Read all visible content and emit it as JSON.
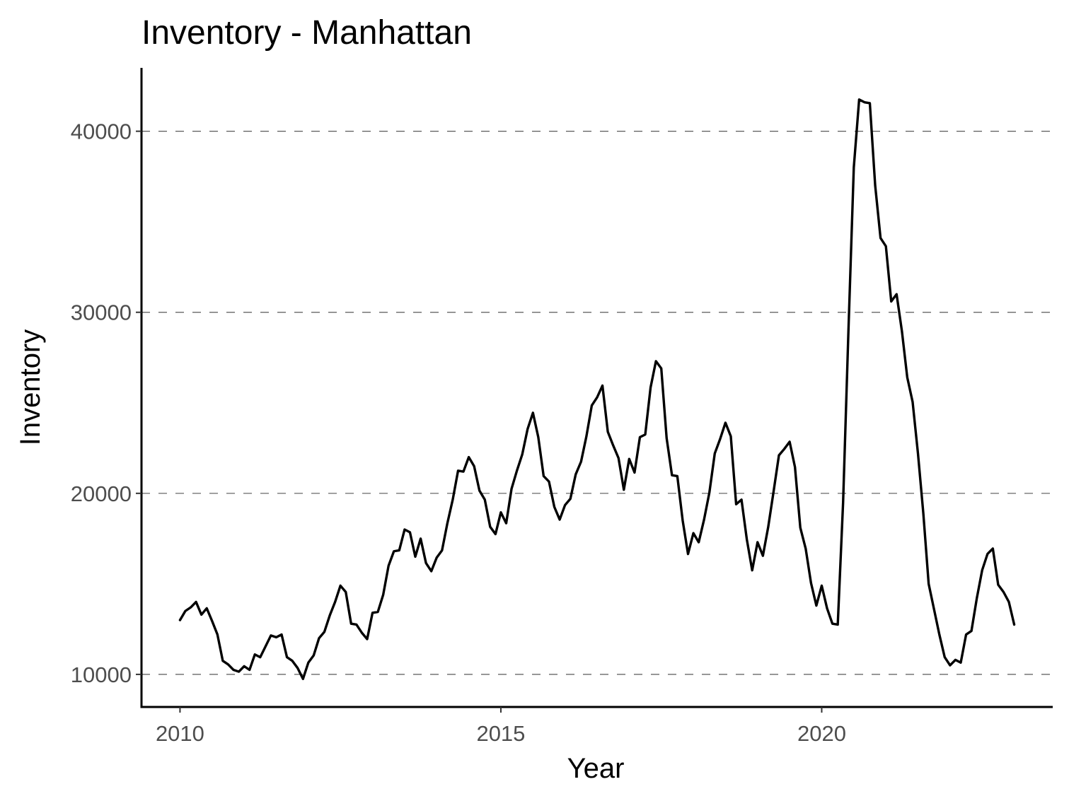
{
  "chart_data": {
    "type": "line",
    "title": "Inventory - Manhattan",
    "xlabel": "Year",
    "ylabel": "Inventory",
    "xlim": [
      2009.4,
      2023.6
    ],
    "ylim": [
      8200,
      43500
    ],
    "x_ticks": [
      2010,
      2015,
      2020
    ],
    "x_tick_labels": [
      "2010",
      "2015",
      "2020"
    ],
    "y_ticks": [
      10000,
      20000,
      30000,
      40000
    ],
    "y_tick_labels": [
      "10000",
      "20000",
      "30000",
      "40000"
    ],
    "grid": "horizontal dashed",
    "legend": "none",
    "colors": {
      "line": "#000000",
      "grid": "#5a5a5a",
      "tick_text": "#4d4d4d"
    },
    "series": [
      {
        "x": [
          "2010-01",
          "2010-02",
          "2010-03",
          "2010-04",
          "2010-05",
          "2010-06",
          "2010-07",
          "2010-08",
          "2010-09",
          "2010-10",
          "2010-11",
          "2010-12",
          "2011-01",
          "2011-02",
          "2011-03",
          "2011-04",
          "2011-05",
          "2011-06",
          "2011-07",
          "2011-08",
          "2011-09",
          "2011-10",
          "2011-11",
          "2011-12",
          "2012-01",
          "2012-02",
          "2012-03",
          "2012-04",
          "2012-05",
          "2012-06",
          "2012-07",
          "2012-08",
          "2012-09",
          "2012-10",
          "2012-11",
          "2012-12",
          "2013-01",
          "2013-02",
          "2013-03",
          "2013-04",
          "2013-05",
          "2013-06",
          "2013-07",
          "2013-08",
          "2013-09",
          "2013-10",
          "2013-11",
          "2013-12",
          "2014-01",
          "2014-02",
          "2014-03",
          "2014-04",
          "2014-05",
          "2014-06",
          "2014-07",
          "2014-08",
          "2014-09",
          "2014-10",
          "2014-11",
          "2014-12",
          "2015-01",
          "2015-02",
          "2015-03",
          "2015-04",
          "2015-05",
          "2015-06",
          "2015-07",
          "2015-08",
          "2015-09",
          "2015-10",
          "2015-11",
          "2015-12",
          "2016-01",
          "2016-02",
          "2016-03",
          "2016-04",
          "2016-05",
          "2016-06",
          "2016-07",
          "2016-08",
          "2016-09",
          "2016-10",
          "2016-11",
          "2016-12",
          "2017-01",
          "2017-02",
          "2017-03",
          "2017-04",
          "2017-05",
          "2017-06",
          "2017-07",
          "2017-08",
          "2017-09",
          "2017-10",
          "2017-11",
          "2017-12",
          "2018-01",
          "2018-02",
          "2018-03",
          "2018-04",
          "2018-05",
          "2018-06",
          "2018-07",
          "2018-08",
          "2018-09",
          "2018-10",
          "2018-11",
          "2018-12",
          "2019-01",
          "2019-02",
          "2019-03",
          "2019-04",
          "2019-05",
          "2019-06",
          "2019-07",
          "2019-08",
          "2019-09",
          "2019-10",
          "2019-11",
          "2019-12",
          "2020-01",
          "2020-02",
          "2020-03",
          "2020-04",
          "2020-05",
          "2020-06",
          "2020-07",
          "2020-08",
          "2020-09",
          "2020-10",
          "2020-11",
          "2020-12",
          "2021-01",
          "2021-02",
          "2021-03",
          "2021-04",
          "2021-05",
          "2021-06",
          "2021-07",
          "2021-08",
          "2021-09",
          "2021-10",
          "2021-11",
          "2021-12",
          "2022-01",
          "2022-02",
          "2022-03",
          "2022-04",
          "2022-05",
          "2022-06",
          "2022-07",
          "2022-08",
          "2022-09",
          "2022-10",
          "2022-11",
          "2022-12",
          "2023-01"
        ],
        "values": [
          13000,
          13500,
          13700,
          14000,
          13300,
          13650,
          12950,
          12200,
          10750,
          10550,
          10250,
          10150,
          10450,
          10250,
          11100,
          10950,
          11550,
          12150,
          12050,
          12200,
          10950,
          10750,
          10350,
          9750,
          10650,
          11050,
          12000,
          12350,
          13250,
          14000,
          14900,
          14550,
          12800,
          12750,
          12300,
          11950,
          13400,
          13450,
          14400,
          16000,
          16800,
          16850,
          18000,
          17850,
          16500,
          17500,
          16150,
          15700,
          16450,
          16850,
          18350,
          19650,
          21250,
          21200,
          22000,
          21500,
          20150,
          19650,
          18150,
          17750,
          18950,
          18350,
          20250,
          21250,
          22150,
          23550,
          24450,
          23100,
          20950,
          20650,
          19250,
          18550,
          19350,
          19700,
          21050,
          21750,
          23150,
          24850,
          25300,
          25950,
          23400,
          22650,
          21950,
          20200,
          21900,
          21150,
          23100,
          23250,
          25850,
          27300,
          26900,
          23050,
          21000,
          20950,
          18500,
          16650,
          17800,
          17300,
          18550,
          20050,
          22200,
          23000,
          23900,
          23150,
          19400,
          19650,
          17450,
          15750,
          17300,
          16550,
          18150,
          20100,
          22100,
          22450,
          22850,
          21450,
          18100,
          16950,
          15050,
          13800,
          14900,
          13650,
          12800,
          12750,
          19500,
          29000,
          38000,
          41750,
          41600,
          41550,
          37000,
          34100,
          33650,
          30600,
          31000,
          28950,
          26400,
          25050,
          22200,
          18900,
          15000,
          13600,
          12200,
          10950,
          10500,
          10800,
          10650,
          12200,
          12400,
          14200,
          15750,
          16650,
          16950,
          14950,
          14550,
          14000,
          12750
        ]
      }
    ]
  }
}
